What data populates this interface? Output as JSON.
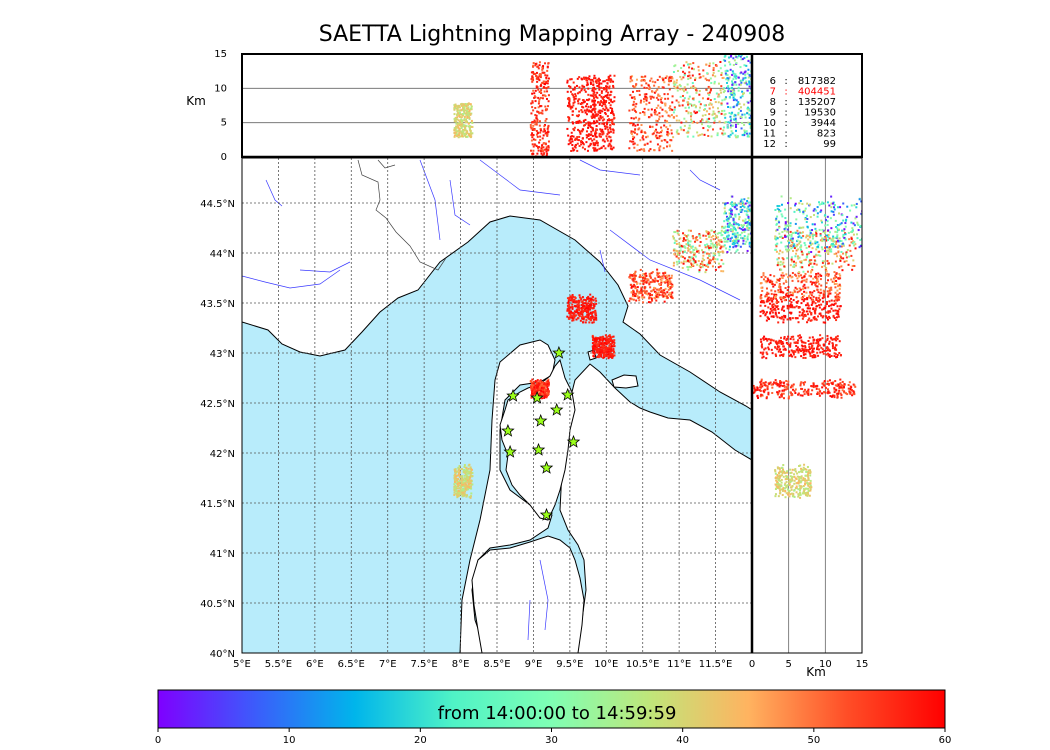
{
  "title": "SAETTA Lightning Mapping Array - 240908",
  "colorbar": {
    "caption": "from 14:00:00 to 14:59:59",
    "ticks": [
      0,
      10,
      20,
      30,
      40,
      50,
      60
    ],
    "range": [
      0,
      60
    ],
    "colormap": "rainbow",
    "colors": [
      "#7f00ff",
      "#3b5dfb",
      "#00b5eb",
      "#4ff3c6",
      "#7fffb4",
      "#c0e67a",
      "#ffb360",
      "#ff4e27",
      "#ff0000"
    ]
  },
  "station_counts": [
    {
      "n": "6",
      "count": "817382",
      "color": "#000000"
    },
    {
      "n": "7",
      "count": "404451",
      "color": "#ff0000"
    },
    {
      "n": "8",
      "count": "135207",
      "color": "#000000"
    },
    {
      "n": "9",
      "count": "19530",
      "color": "#000000"
    },
    {
      "n": "10",
      "count": "3944",
      "color": "#000000"
    },
    {
      "n": "11",
      "count": "823",
      "color": "#000000"
    },
    {
      "n": "12",
      "count": "99",
      "color": "#000000"
    }
  ],
  "chart_data": {
    "type": "scatter",
    "title": "SAETTA Lightning Mapping Array - 240908",
    "map": {
      "lon_ticks": [
        "5°E",
        "5.5°E",
        "6°E",
        "6.5°E",
        "7°E",
        "7.5°E",
        "8°E",
        "8.5°E",
        "9°E",
        "9.5°E",
        "10°E",
        "10.5°E",
        "11°E",
        "11.5°E"
      ],
      "lat_ticks": [
        "44.5°N",
        "44°N",
        "43.5°N",
        "43°N",
        "42.5°N",
        "42°N",
        "41.5°N",
        "41°N",
        "40.5°N",
        "40°N"
      ],
      "xlim": [
        5,
        12
      ],
      "ylim": [
        40,
        44.95
      ],
      "grid": true,
      "sea_color": "#b8ecfb"
    },
    "altitude_top": {
      "ylabel": "Km",
      "yticks": [
        "0",
        "5",
        "10",
        "15"
      ],
      "ylim": [
        0,
        15
      ]
    },
    "altitude_side": {
      "xlabel": "Km",
      "xticks": [
        "0",
        "5",
        "10",
        "15"
      ],
      "xlim": [
        0,
        15
      ]
    },
    "stations": [
      {
        "lon": 9.35,
        "lat": 43.0
      },
      {
        "lon": 8.72,
        "lat": 42.57
      },
      {
        "lon": 9.05,
        "lat": 42.55
      },
      {
        "lon": 9.47,
        "lat": 42.58
      },
      {
        "lon": 9.32,
        "lat": 42.43
      },
      {
        "lon": 9.1,
        "lat": 42.32
      },
      {
        "lon": 8.65,
        "lat": 42.22
      },
      {
        "lon": 9.55,
        "lat": 42.11
      },
      {
        "lon": 8.68,
        "lat": 42.01
      },
      {
        "lon": 9.07,
        "lat": 42.03
      },
      {
        "lon": 9.18,
        "lat": 41.85
      },
      {
        "lon": 9.18,
        "lat": 41.38
      }
    ],
    "storm_clusters": [
      {
        "lon": [
          7.9,
          8.15
        ],
        "lat": [
          41.55,
          41.9
        ],
        "alt": [
          3,
          8
        ],
        "time": [
          35,
          45
        ]
      },
      {
        "lon": [
          8.95,
          9.2
        ],
        "lat": [
          42.55,
          42.75
        ],
        "alt": [
          0,
          14
        ],
        "time": [
          50,
          60
        ]
      },
      {
        "lon": [
          9.45,
          9.85
        ],
        "lat": [
          43.3,
          43.6
        ],
        "alt": [
          1,
          12
        ],
        "time": [
          55,
          60
        ]
      },
      {
        "lon": [
          9.8,
          10.1
        ],
        "lat": [
          42.95,
          43.2
        ],
        "alt": [
          1,
          12
        ],
        "time": [
          55,
          60
        ]
      },
      {
        "lon": [
          10.3,
          10.9
        ],
        "lat": [
          43.5,
          43.85
        ],
        "alt": [
          1,
          12
        ],
        "time": [
          45,
          60
        ]
      },
      {
        "lon": [
          10.9,
          11.6
        ],
        "lat": [
          43.8,
          44.3
        ],
        "alt": [
          3,
          14
        ],
        "time": [
          25,
          60
        ]
      },
      {
        "lon": [
          11.6,
          12.0
        ],
        "lat": [
          44.0,
          44.6
        ],
        "alt": [
          3,
          15
        ],
        "time": [
          0,
          40
        ]
      }
    ]
  }
}
